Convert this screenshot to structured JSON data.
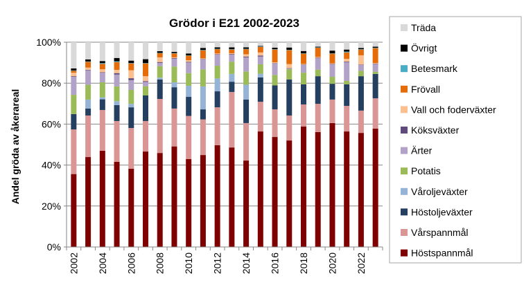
{
  "chart_data": {
    "type": "bar",
    "stacked": true,
    "title": "Grödor i E21 2002-2023",
    "xlabel": "",
    "ylabel": "Andel gröda av åkerareal",
    "ylim": [
      0,
      100
    ],
    "y_ticks": [
      "0%",
      "20%",
      "40%",
      "60%",
      "80%",
      "100%"
    ],
    "grid": true,
    "legend_position": "right",
    "categories": [
      "2002",
      "2003",
      "2004",
      "2005",
      "2006",
      "2007",
      "2008",
      "2009",
      "2010",
      "2011",
      "2012",
      "2013",
      "2014",
      "2015",
      "2016",
      "2017",
      "2018",
      "2019",
      "2020",
      "2021",
      "2022",
      "2023"
    ],
    "x_tick_labels": [
      "2002",
      "2004",
      "2006",
      "2008",
      "2010",
      "2012",
      "2014",
      "2016",
      "2018",
      "2020",
      "2022"
    ],
    "series": [
      {
        "name": "Höstspannmål",
        "color": "#7f0000",
        "values": [
          35.6,
          43.9,
          47.0,
          41.6,
          38.2,
          46.6,
          45.9,
          49.1,
          42.9,
          44.9,
          49.7,
          48.6,
          42.2,
          56.4,
          53.7,
          52.0,
          58.8,
          56.1,
          60.5,
          56.4,
          55.7,
          57.8
        ]
      },
      {
        "name": "Vårspannmål",
        "color": "#d99694",
        "values": [
          21.8,
          20.3,
          19.9,
          19.9,
          19.9,
          14.9,
          26.4,
          18.5,
          21.1,
          17.4,
          18.5,
          27.1,
          18.3,
          14.5,
          13.5,
          12.2,
          10.8,
          13.8,
          11.5,
          12.5,
          10.9,
          14.8
        ]
      },
      {
        "name": "Höstoljeväxter",
        "color": "#243f60",
        "values": [
          7.5,
          3.4,
          5.2,
          7.8,
          10.1,
          12.5,
          9.5,
          10.4,
          9.3,
          4.9,
          7.8,
          5.0,
          11.5,
          11.9,
          11.7,
          17.6,
          9.8,
          13.5,
          7.7,
          10.5,
          16.8,
          11.9
        ]
      },
      {
        "name": "Våroljeväxter",
        "color": "#95b3d7",
        "values": [
          0,
          4.4,
          1.0,
          1.9,
          1.7,
          0,
          0.9,
          2.4,
          5.4,
          11.2,
          6.3,
          3.8,
          7.2,
          1.8,
          0,
          0,
          0,
          0,
          0,
          0,
          0,
          0
        ]
      },
      {
        "name": "Potatis",
        "color": "#9bbb59",
        "values": [
          9.4,
          7.2,
          7.3,
          7.2,
          6.8,
          4.5,
          5.6,
          7.7,
          6.2,
          8.3,
          6.2,
          6.0,
          6.5,
          4.6,
          5.1,
          5.0,
          5.7,
          3.2,
          3.4,
          1.7,
          2.6,
          1.1
        ]
      },
      {
        "name": "Ärter",
        "color": "#b3a2c7",
        "values": [
          8.8,
          7.1,
          4.7,
          5.8,
          4.8,
          2.1,
          1.6,
          3.8,
          5.2,
          4.9,
          5.4,
          3.4,
          6.9,
          3.8,
          5.6,
          0.3,
          3.8,
          5.6,
          6.1,
          9.1,
          2.9,
          3.7
        ]
      },
      {
        "name": "Köksväxter",
        "color": "#604a7b",
        "values": [
          0.3,
          0.2,
          0.2,
          0.7,
          0.9,
          0.4,
          0.4,
          0.3,
          0.3,
          0.2,
          0.2,
          0.3,
          0.4,
          0.5,
          0.2,
          0.2,
          0.2,
          0.2,
          0.2,
          0.3,
          0.2,
          0.2
        ]
      },
      {
        "name": "Vall och foderväxter",
        "color": "#fac090",
        "values": [
          1.7,
          1.1,
          1.5,
          1.6,
          3.9,
          2.4,
          2.3,
          0.4,
          0.8,
          0.3,
          0.4,
          0.4,
          1.1,
          1.5,
          0.4,
          2.0,
          0.3,
          0.4,
          0.3,
          1.4,
          4.5,
          0.3
        ]
      },
      {
        "name": "Frövall",
        "color": "#e46c0a",
        "values": [
          0.9,
          2.8,
          2.6,
          3.8,
          3.3,
          6.2,
          2.0,
          1.9,
          2.2,
          3.9,
          2.1,
          1.8,
          2.5,
          2.7,
          6.2,
          6.8,
          5.0,
          4.5,
          4.7,
          3.1,
          2.8,
          7.3
        ]
      },
      {
        "name": "Betesmark",
        "color": "#4bacc6",
        "values": [
          0.2,
          0.2,
          0.4,
          0.4,
          0.2,
          0.2,
          0.2,
          0.2,
          0.2,
          0.2,
          0.2,
          0.2,
          0.2,
          0.2,
          0.2,
          0.2,
          0.2,
          0.2,
          0.2,
          0.4,
          0.2,
          0.2
        ]
      },
      {
        "name": "Övrigt",
        "color": "#000000",
        "values": [
          1.0,
          1.0,
          1.0,
          1.6,
          1.2,
          1.9,
          0.8,
          0.6,
          0.9,
          1.0,
          0.7,
          0.9,
          0.7,
          0.3,
          0.7,
          1.1,
          1.1,
          0.3,
          1.3,
          1.0,
          0.6,
          0.5
        ]
      },
      {
        "name": "Träda",
        "color": "#d9d9d9",
        "values": [
          12.8,
          8.4,
          9.2,
          7.7,
          9.0,
          8.3,
          4.4,
          4.7,
          5.5,
          3.0,
          2.5,
          2.5,
          2.5,
          2.3,
          2.7,
          2.8,
          4.3,
          2.7,
          4.1,
          3.8,
          2.8,
          2.3
        ]
      }
    ]
  }
}
